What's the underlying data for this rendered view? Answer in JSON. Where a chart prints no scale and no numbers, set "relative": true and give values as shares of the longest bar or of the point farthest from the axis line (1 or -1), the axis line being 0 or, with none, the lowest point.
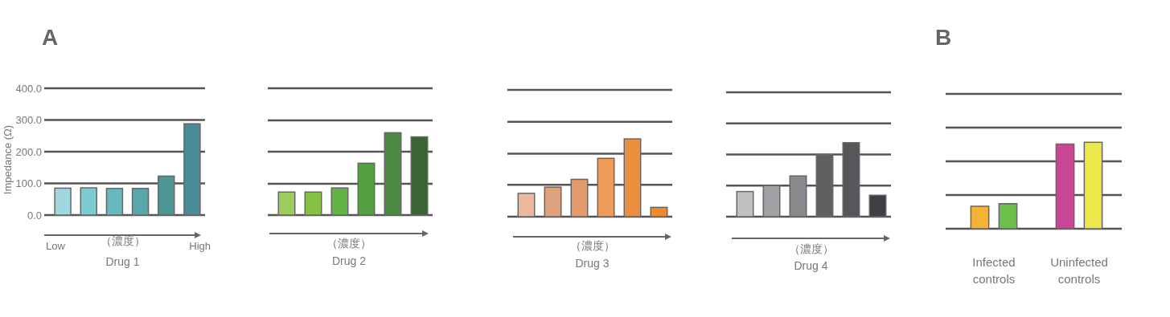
{
  "chart_data": [
    {
      "type": "bar",
      "title": "Drug 1",
      "xlabel": "（濃度）",
      "ylabel": "Impedance (Ω)",
      "annotations": [
        "A",
        "Low",
        "High"
      ],
      "categories": [
        null,
        null,
        null,
        null,
        null,
        null
      ],
      "values": [
        85,
        86,
        84,
        84,
        123,
        288
      ],
      "colors": [
        "#9fd9df",
        "#7ccbd1",
        "#68b9bd",
        "#5aa7a9",
        "#4f9593",
        "#4a8d98"
      ],
      "ylim": [
        0,
        400
      ],
      "yticks": [
        {
          "value": 0,
          "label": "0.0"
        },
        {
          "value": 100,
          "label": "100.0"
        },
        {
          "value": 200,
          "label": "200.0"
        },
        {
          "value": 300,
          "label": "300.0"
        },
        {
          "value": 400,
          "label": "400.0"
        }
      ],
      "grid": "y"
    },
    {
      "type": "bar",
      "title": "Drug 2",
      "xlabel": "（濃度）",
      "relative": true,
      "categories": [
        null,
        null,
        null,
        null,
        null,
        null
      ],
      "values": [
        0.28,
        0.28,
        0.33,
        0.63,
        1,
        0.95
      ],
      "colors": [
        "#9ccc5a",
        "#86c143",
        "#62b544",
        "#53a043",
        "#4b8b41",
        "#3a6533"
      ],
      "ref_lines": [
        {
          "axis": "y",
          "value": 0.38
        },
        {
          "axis": "y",
          "value": 0.77
        },
        {
          "axis": "y",
          "value": 1.15
        },
        {
          "axis": "y",
          "value": 1.54
        }
      ]
    },
    {
      "type": "bar",
      "title": "Drug 3",
      "xlabel": "（濃度）",
      "relative": true,
      "categories": [
        null,
        null,
        null,
        null,
        null,
        null
      ],
      "values": [
        0.3,
        0.38,
        0.48,
        0.75,
        1,
        0.12
      ],
      "colors": [
        "#e8b99a",
        "#e0a27e",
        "#e49a6a",
        "#ee9c5c",
        "#ec8e3f",
        "#ef8a30"
      ],
      "ref_lines": [
        {
          "axis": "y",
          "value": 0.41
        },
        {
          "axis": "y",
          "value": 0.81
        },
        {
          "axis": "y",
          "value": 1.22
        },
        {
          "axis": "y",
          "value": 1.63
        }
      ]
    },
    {
      "type": "bar",
      "title": "Drug 4",
      "xlabel": "（濃度）",
      "relative": true,
      "categories": [
        null,
        null,
        null,
        null,
        null,
        null
      ],
      "values": [
        0.34,
        0.42,
        0.55,
        0.84,
        1,
        0.29
      ],
      "colors": [
        "#c0c1c3",
        "#9fa0a3",
        "#88898c",
        "#5f6062",
        "#56575a",
        "#3e3f43"
      ],
      "ref_lines": [
        {
          "axis": "y",
          "value": 0.42
        },
        {
          "axis": "y",
          "value": 0.84
        },
        {
          "axis": "y",
          "value": 1.26
        },
        {
          "axis": "y",
          "value": 1.68
        }
      ]
    },
    {
      "type": "bar",
      "annotations": [
        "B"
      ],
      "relative": true,
      "categories": [
        "Infected controls",
        "Uninfected controls"
      ],
      "series": [
        {
          "values": [
            0.26,
            0.98
          ],
          "colors": [
            "#f5b335",
            "#c94695"
          ]
        },
        {
          "values": [
            0.29,
            1
          ],
          "colors": [
            "#6cbf4b",
            "#ebe84c"
          ]
        }
      ],
      "ref_lines": [
        {
          "axis": "y",
          "value": 0.39
        },
        {
          "axis": "y",
          "value": 0.78
        },
        {
          "axis": "y",
          "value": 1.17
        },
        {
          "axis": "y",
          "value": 1.56
        }
      ]
    }
  ]
}
